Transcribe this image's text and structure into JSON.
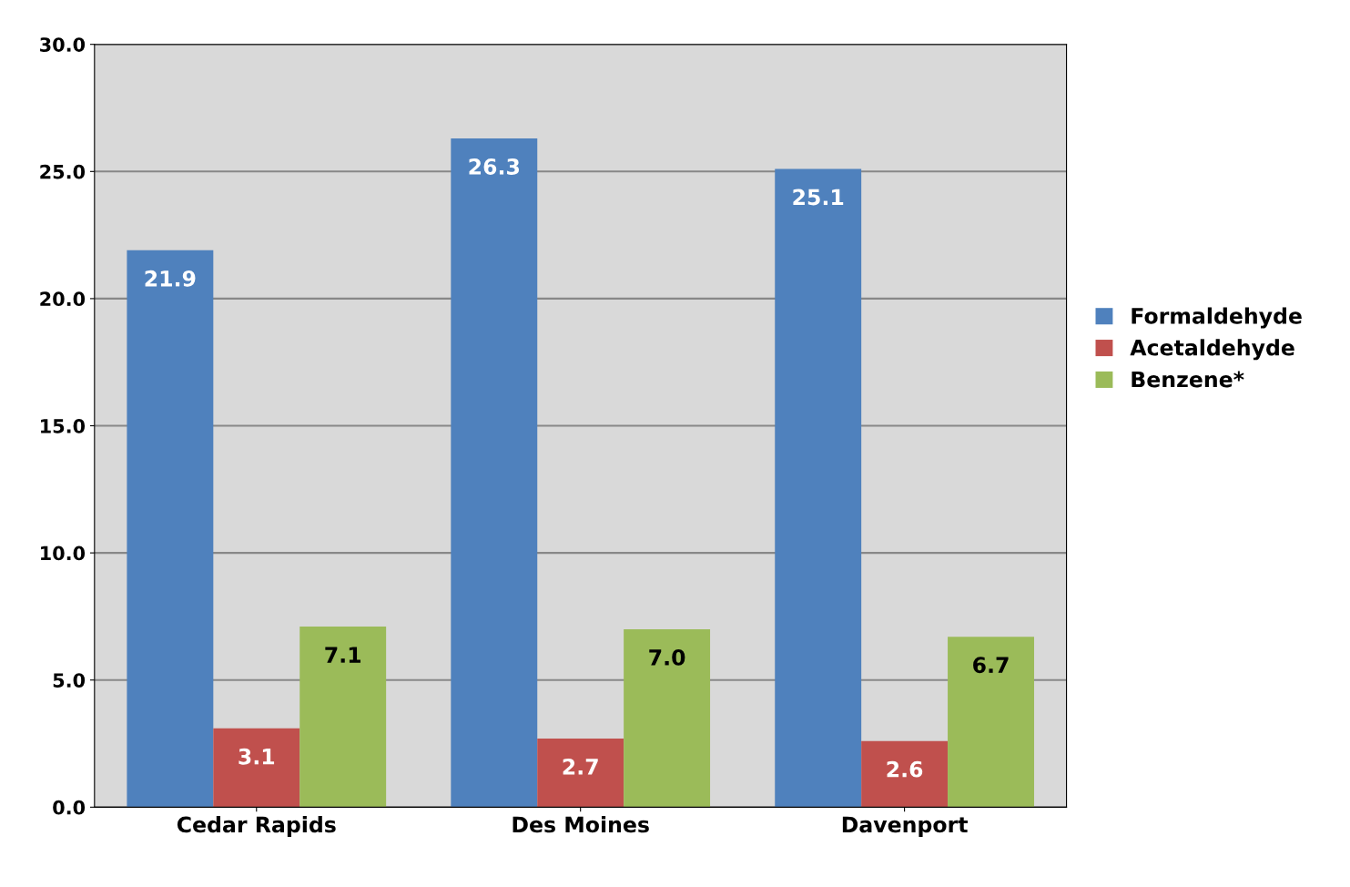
{
  "chart_data": {
    "type": "bar",
    "categories": [
      "Cedar Rapids",
      "Des Moines",
      "Davenport"
    ],
    "series": [
      {
        "name": "Formaldehyde",
        "color": "#4f81bd",
        "values": [
          21.9,
          26.3,
          25.1
        ],
        "value_labels": [
          "21.9",
          "26.3",
          "25.1"
        ]
      },
      {
        "name": "Acetaldehyde",
        "color": "#c0504d",
        "values": [
          3.1,
          2.7,
          2.6
        ],
        "value_labels": [
          "3.1",
          "2.7",
          "2.6"
        ]
      },
      {
        "name": "Benzene*",
        "color": "#9bbb59",
        "values": [
          7.1,
          7.0,
          6.7
        ],
        "value_labels": [
          "7.1",
          "7.0",
          "6.7"
        ]
      }
    ],
    "ylim": [
      0,
      30
    ],
    "yticks": [
      {
        "value": 0,
        "label": "0.0"
      },
      {
        "value": 5,
        "label": "5.0"
      },
      {
        "value": 10,
        "label": "10.0"
      },
      {
        "value": 15,
        "label": "15.0"
      },
      {
        "value": 20,
        "label": "20.0"
      },
      {
        "value": 25,
        "label": "25.0"
      },
      {
        "value": 30,
        "label": "30.0"
      }
    ],
    "grid": "y",
    "legend": "right"
  }
}
